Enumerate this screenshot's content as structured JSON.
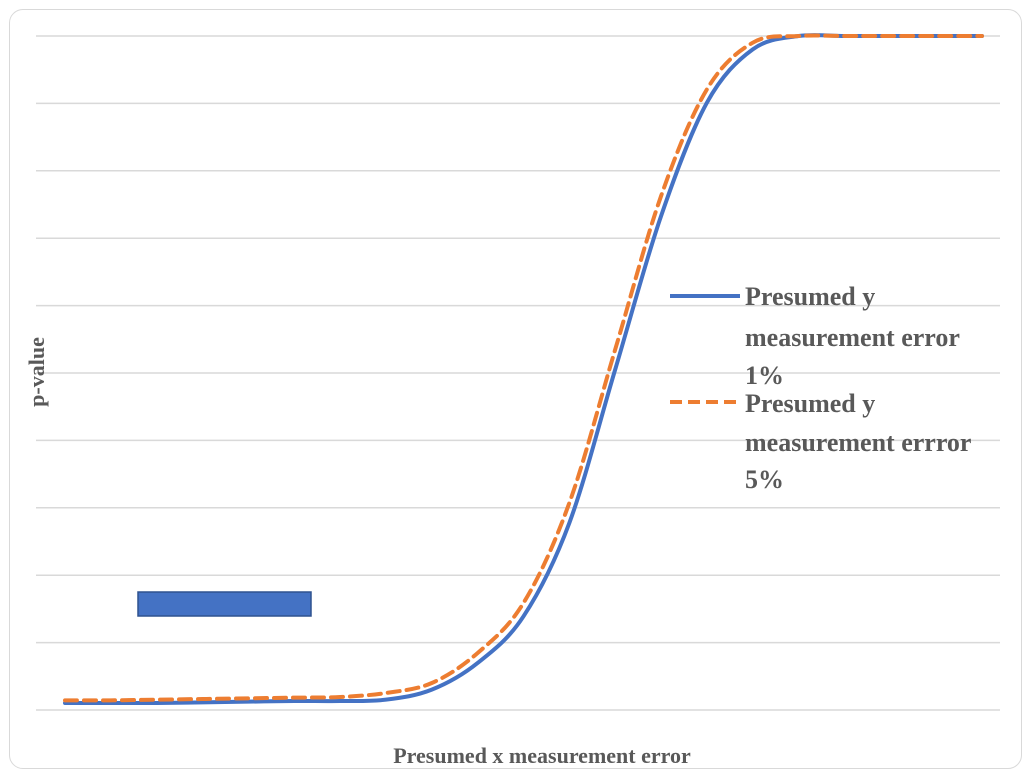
{
  "chart_data": {
    "type": "line",
    "title": "",
    "xlabel": "Presumed x measurement error",
    "ylabel": "p-value",
    "x": [
      0,
      0.05,
      0.1,
      0.15,
      0.2,
      0.25,
      0.3,
      0.35,
      0.4,
      0.45,
      0.5,
      0.55,
      0.6,
      0.65,
      0.7,
      0.75,
      0.8,
      0.85,
      0.9,
      0.95,
      1
    ],
    "ylim": [
      0,
      1
    ],
    "xlim": [
      0,
      1
    ],
    "grid": true,
    "legend_position": "right",
    "series": [
      {
        "name": "Presumed y measurement error 1%",
        "style": "solid",
        "color": "#4472c4",
        "values": [
          0.0,
          0.0,
          0.0,
          0.001,
          0.002,
          0.003,
          0.003,
          0.005,
          0.02,
          0.06,
          0.13,
          0.27,
          0.5,
          0.73,
          0.9,
          0.98,
          1.0,
          1.0,
          1.0,
          1.0,
          1.0
        ]
      },
      {
        "name": "Presumed y measurement errror 5%",
        "style": "dashed",
        "color": "#ed7d31",
        "values": [
          0.004,
          0.004,
          0.005,
          0.006,
          0.007,
          0.008,
          0.009,
          0.015,
          0.03,
          0.075,
          0.15,
          0.3,
          0.53,
          0.76,
          0.92,
          0.99,
          1.0,
          1.0,
          1.0,
          1.0,
          1.0
        ]
      }
    ]
  }
}
